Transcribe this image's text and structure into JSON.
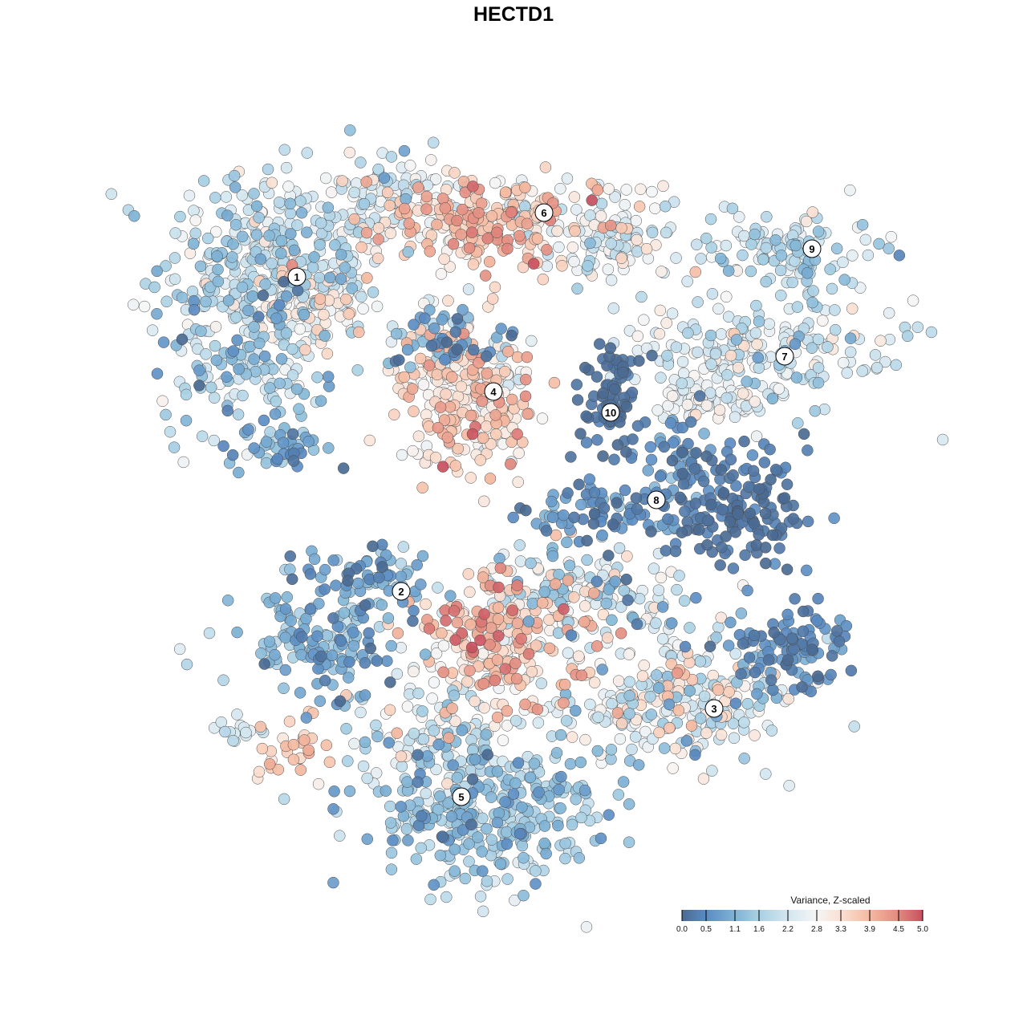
{
  "chart_data": {
    "type": "scatter",
    "title": "HECTD1",
    "xlabel": "",
    "ylabel": "",
    "axes_visible": false,
    "xlim": [
      -64,
      64
    ],
    "ylim": [
      -64,
      64
    ],
    "color_variable": "Variance, Z-scaled",
    "color_range": [
      0,
      5
    ],
    "colorbar": {
      "title": "Variance, Z-scaled",
      "ticks": [
        "0.0",
        "0.5",
        "1.1",
        "1.6",
        "2.2",
        "2.8",
        "3.3",
        "3.9",
        "4.5",
        "5.0"
      ],
      "tick_values": [
        0,
        0.5,
        1.1,
        1.6,
        2.2,
        2.8,
        3.3,
        3.9,
        4.5,
        5.0
      ],
      "colors": [
        "#4b6a92",
        "#5b8cc3",
        "#7fb3d5",
        "#a9d0e4",
        "#d3e6f0",
        "#f5f5f5",
        "#fbe0d2",
        "#f4b9a0",
        "#e2897f",
        "#c8505f"
      ],
      "placement": "bottom-right"
    },
    "cluster_labels": [
      {
        "label": "1",
        "x": -27.0,
        "y": 29.5
      },
      {
        "label": "2",
        "x": -14.0,
        "y": -9.7
      },
      {
        "label": "3",
        "x": 25.0,
        "y": -24.3
      },
      {
        "label": "4",
        "x": -2.5,
        "y": 15.2
      },
      {
        "label": "5",
        "x": -6.5,
        "y": -35.3
      },
      {
        "label": "6",
        "x": 3.8,
        "y": 37.5
      },
      {
        "label": "7",
        "x": 33.8,
        "y": 19.6
      },
      {
        "label": "8",
        "x": 17.8,
        "y": 1.7
      },
      {
        "label": "9",
        "x": 37.2,
        "y": 33.0
      },
      {
        "label": "10",
        "x": 12.1,
        "y": 12.6
      }
    ],
    "point_groups": [
      {
        "cluster": "1",
        "x": -30,
        "y": 31,
        "sx": 7,
        "sy": 6,
        "n": 350,
        "value": 2.0,
        "value_sd": 0.6
      },
      {
        "cluster": "1",
        "x": -34,
        "y": 19,
        "sx": 5,
        "sy": 6,
        "n": 150,
        "value": 1.7,
        "value_sd": 0.6
      },
      {
        "cluster": "1",
        "x": -28,
        "y": 8,
        "sx": 3,
        "sy": 1.5,
        "n": 40,
        "value": 0.8,
        "value_sd": 0.4
      },
      {
        "cluster": "1",
        "x": -24,
        "y": 26,
        "sx": 3,
        "sy": 3,
        "n": 60,
        "value": 3.1,
        "value_sd": 0.4
      },
      {
        "cluster": "6",
        "x": -4,
        "y": 36.5,
        "sx": 7,
        "sy": 3,
        "n": 250,
        "value": 3.6,
        "value_sd": 0.6
      },
      {
        "cluster": "6",
        "x": 12,
        "y": 35,
        "sx": 5,
        "sy": 3,
        "n": 120,
        "value": 2.4,
        "value_sd": 0.5
      },
      {
        "cluster": "6",
        "x": -16,
        "y": 40,
        "sx": 4,
        "sy": 2.5,
        "n": 80,
        "value": 2.3,
        "value_sd": 0.5
      },
      {
        "cluster": "4",
        "x": -6,
        "y": 15,
        "sx": 4.5,
        "sy": 4.5,
        "n": 250,
        "value": 3.3,
        "value_sd": 0.6
      },
      {
        "cluster": "4",
        "x": -8,
        "y": 22,
        "sx": 4,
        "sy": 2,
        "n": 60,
        "value": 1.0,
        "value_sd": 0.5
      },
      {
        "cluster": "10",
        "x": 12.5,
        "y": 14,
        "sx": 2,
        "sy": 4,
        "n": 80,
        "value": 0.1,
        "value_sd": 0.15
      },
      {
        "cluster": "9",
        "x": 34,
        "y": 33,
        "sx": 6,
        "sy": 2.5,
        "n": 120,
        "value": 2.0,
        "value_sd": 0.5
      },
      {
        "cluster": "7",
        "x": 32,
        "y": 20,
        "sx": 9,
        "sy": 3.5,
        "n": 200,
        "value": 2.2,
        "value_sd": 0.5
      },
      {
        "cluster": "7",
        "x": 24,
        "y": 14,
        "sx": 4,
        "sy": 2,
        "n": 60,
        "value": 2.6,
        "value_sd": 0.4
      },
      {
        "cluster": "8",
        "x": 28,
        "y": 0,
        "sx": 4.5,
        "sy": 3.5,
        "n": 150,
        "value": 0.2,
        "value_sd": 0.2
      },
      {
        "cluster": "8",
        "x": 10,
        "y": 0,
        "sx": 5,
        "sy": 2,
        "n": 80,
        "value": 0.6,
        "value_sd": 0.4
      },
      {
        "cluster": "8",
        "x": 21,
        "y": 7,
        "sx": 2.5,
        "sy": 3,
        "n": 50,
        "value": 0.6,
        "value_sd": 0.4
      },
      {
        "cluster": "2",
        "x": -24,
        "y": -16,
        "sx": 5,
        "sy": 3,
        "n": 150,
        "value": 1.1,
        "value_sd": 0.5
      },
      {
        "cluster": "2",
        "x": -18,
        "y": -8,
        "sx": 4,
        "sy": 2,
        "n": 70,
        "value": 1.0,
        "value_sd": 0.5
      },
      {
        "cluster": "center",
        "x": -1,
        "y": -16,
        "sx": 5.5,
        "sy": 4.5,
        "n": 250,
        "value": 3.4,
        "value_sd": 0.7
      },
      {
        "cluster": "center",
        "x": 9,
        "y": -10,
        "sx": 6,
        "sy": 3,
        "n": 150,
        "value": 2.0,
        "value_sd": 0.7
      },
      {
        "cluster": "3",
        "x": 21,
        "y": -23,
        "sx": 7,
        "sy": 4,
        "n": 250,
        "value": 2.5,
        "value_sd": 0.7
      },
      {
        "cluster": "3",
        "x": 34,
        "y": -17,
        "sx": 3.5,
        "sy": 3,
        "n": 100,
        "value": 0.5,
        "value_sd": 0.3
      },
      {
        "cluster": "5",
        "x": -3,
        "y": -37,
        "sx": 8,
        "sy": 4.5,
        "n": 350,
        "value": 1.5,
        "value_sd": 0.5
      },
      {
        "cluster": "5",
        "x": -11,
        "y": -28,
        "sx": 4,
        "sy": 3,
        "n": 80,
        "value": 2.3,
        "value_sd": 0.6
      },
      {
        "cluster": "small",
        "x": -28,
        "y": -29.5,
        "sx": 2.5,
        "sy": 2,
        "n": 30,
        "value": 3.6,
        "value_sd": 0.3
      },
      {
        "cluster": "small",
        "x": -34,
        "y": -26.5,
        "sx": 1.5,
        "sy": 1,
        "n": 15,
        "value": 2.2,
        "value_sd": 0.3
      }
    ]
  }
}
